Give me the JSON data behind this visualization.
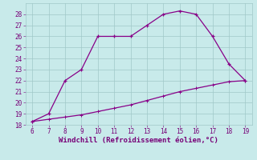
{
  "upper_x": [
    6,
    7,
    8,
    9,
    10,
    11,
    12,
    13,
    14,
    15,
    16,
    17,
    18,
    19
  ],
  "upper_y": [
    18.3,
    19.0,
    22.0,
    23.0,
    26.0,
    26.0,
    26.0,
    27.0,
    28.0,
    28.3,
    28.0,
    26.0,
    23.5,
    22.0
  ],
  "lower_x": [
    6,
    7,
    8,
    9,
    10,
    11,
    12,
    13,
    14,
    15,
    16,
    17,
    18,
    19
  ],
  "lower_y": [
    18.3,
    18.5,
    18.7,
    18.9,
    19.2,
    19.5,
    19.8,
    20.2,
    20.6,
    21.0,
    21.3,
    21.6,
    21.9,
    22.0
  ],
  "line_color": "#880088",
  "background_color": "#c8eaea",
  "grid_major_color": "#a0c8c8",
  "grid_minor_color": "#b8d8d8",
  "xlabel": "Windchill (Refroidissement éolien,°C)",
  "xlim": [
    5.6,
    19.4
  ],
  "ylim": [
    18,
    29
  ],
  "yticks": [
    18,
    19,
    20,
    21,
    22,
    23,
    24,
    25,
    26,
    27,
    28
  ],
  "xticks": [
    6,
    7,
    8,
    9,
    10,
    11,
    12,
    13,
    14,
    15,
    16,
    17,
    18,
    19
  ],
  "tick_fontsize": 5.5,
  "xlabel_fontsize": 6.5,
  "marker_size": 3.5,
  "line_width": 0.9
}
